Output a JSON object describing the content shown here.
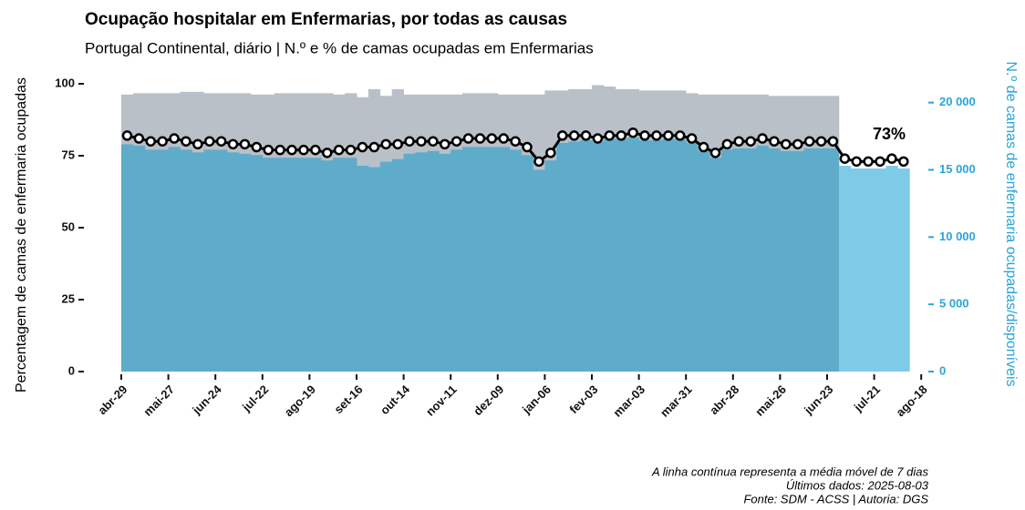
{
  "chart_data": {
    "type": "bar",
    "title": "Ocupação hospitalar em Enfermarias, por todas as causas",
    "subtitle": "Portugal Continental, diário | N.º e % de camas ocupadas em Enfermarias",
    "y_label": "Percentagem de camas de enfermaria ocupadas",
    "y2_label": "N.º de camas de enfermaria ocupadas/disponíveis",
    "annotation": "73%",
    "notes": [
      "A linha contínua representa a média móvel de 7 dias",
      "Últimos dados: 2025-08-03",
      "Fonte: SDM - ACSS | Autoria: DGS"
    ],
    "categories": [
      "abr-29",
      null,
      null,
      null,
      "mai-27",
      null,
      null,
      null,
      "jun-24",
      null,
      null,
      null,
      "jul-22",
      null,
      null,
      null,
      "ago-19",
      null,
      null,
      null,
      "set-16",
      null,
      null,
      null,
      "out-14",
      null,
      null,
      null,
      "nov-11",
      null,
      null,
      null,
      "dez-09",
      null,
      null,
      null,
      "jan-06",
      null,
      null,
      null,
      "fev-03",
      null,
      null,
      null,
      "mar-03",
      null,
      null,
      null,
      "mar-31",
      null,
      null,
      null,
      "abr-28",
      null,
      null,
      null,
      "mai-26",
      null,
      null,
      null,
      "jun-23",
      null,
      null,
      null,
      "jul-21",
      null,
      null,
      null,
      "ago-18"
    ],
    "ylim": [
      0,
      100
    ],
    "yticks": [
      0,
      25,
      50,
      75,
      100
    ],
    "y2lim": [
      0,
      21400
    ],
    "y2ticks": [
      0,
      {
        "value": 5000,
        "label": "5 000"
      },
      {
        "value": 10000,
        "label": "10 000"
      },
      {
        "value": 15000,
        "label": "15 000"
      },
      {
        "value": 20000,
        "label": "20 000"
      }
    ],
    "series": [
      {
        "type": "bar",
        "axis": "y2",
        "color": "#bac0c8",
        "values": [
          20600,
          20700,
          20700,
          20700,
          20700,
          20800,
          20800,
          20700,
          20700,
          20700,
          20700,
          20600,
          20600,
          20700,
          20700,
          20700,
          20700,
          20700,
          20600,
          20700,
          20400,
          21000,
          20500,
          21000,
          20600,
          20600,
          20600,
          20600,
          20600,
          20700,
          20700,
          20700,
          20600,
          20600,
          20600,
          20600,
          20900,
          20900,
          21000,
          21000,
          21300,
          21200,
          21000,
          21000,
          20900,
          20900,
          20900,
          20900,
          20700,
          20600,
          20600,
          20600,
          20600,
          20600,
          20600,
          20500,
          20500,
          20500,
          20500,
          20500,
          20500,
          null,
          null,
          null,
          null,
          null,
          null,
          null,
          null
        ]
      },
      {
        "type": "bar",
        "axis": "y2",
        "color": "#5eacca",
        "values": [
          16900,
          16800,
          16500,
          16500,
          16700,
          16500,
          16300,
          16500,
          16500,
          16300,
          16200,
          16100,
          15900,
          15900,
          15900,
          15900,
          15900,
          15700,
          15900,
          15900,
          15300,
          15200,
          15600,
          15800,
          16200,
          16300,
          16400,
          16200,
          16500,
          16700,
          16700,
          16700,
          16700,
          16500,
          16100,
          15000,
          15700,
          17000,
          17100,
          17200,
          17100,
          17300,
          17300,
          17400,
          17200,
          17200,
          17300,
          17300,
          17000,
          16400,
          15900,
          16500,
          16600,
          16600,
          16800,
          16600,
          16400,
          16400,
          16600,
          16600,
          16600,
          null,
          null,
          null,
          null,
          null,
          null,
          null,
          null
        ]
      },
      {
        "type": "bar",
        "axis": "y2",
        "color": "#7ecbe8",
        "values": [
          null,
          null,
          null,
          null,
          null,
          null,
          null,
          null,
          null,
          null,
          null,
          null,
          null,
          null,
          null,
          null,
          null,
          null,
          null,
          null,
          null,
          null,
          null,
          null,
          null,
          null,
          null,
          null,
          null,
          null,
          null,
          null,
          null,
          null,
          null,
          null,
          null,
          null,
          null,
          null,
          null,
          null,
          null,
          null,
          null,
          null,
          null,
          null,
          null,
          null,
          null,
          null,
          null,
          null,
          null,
          null,
          null,
          null,
          null,
          null,
          null,
          15300,
          15100,
          15100,
          15100,
          15300,
          15100,
          null,
          null
        ]
      },
      {
        "type": "line",
        "color": "#000000",
        "values": [
          82,
          81,
          80,
          80,
          81,
          80,
          79,
          80,
          80,
          79,
          79,
          78,
          77,
          77,
          77,
          77,
          77,
          76,
          77,
          77,
          78,
          78,
          79,
          79,
          80,
          80,
          80,
          79,
          80,
          81,
          81,
          81,
          81,
          80,
          78,
          73,
          76,
          82,
          82,
          82,
          81,
          82,
          82,
          83,
          82,
          82,
          82,
          82,
          81,
          78,
          76,
          79,
          80,
          80,
          81,
          80,
          79,
          79,
          80,
          80,
          80,
          74,
          73,
          73,
          73,
          74,
          73,
          null,
          null
        ]
      }
    ]
  }
}
